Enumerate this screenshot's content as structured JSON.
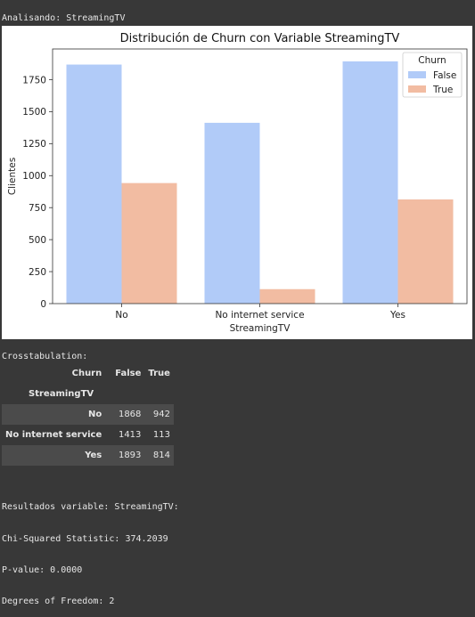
{
  "output": {
    "analyzing_line": "Analisando: StreamingTV",
    "crosstab_title": "Crosstabulation:",
    "results_lines": [
      "Resultados variable: StreamingTV:",
      "Chi-Squared Statistic: 374.2039",
      "P-value: 0.0000",
      "Degrees of Freedom: 2"
    ]
  },
  "crosstab": {
    "columns_header": "Churn",
    "columns": [
      "False",
      "True"
    ],
    "index_name": "StreamingTV",
    "rows": [
      {
        "label": "No",
        "values": [
          "1868",
          "942"
        ]
      },
      {
        "label": "No internet service",
        "values": [
          "1413",
          "113"
        ]
      },
      {
        "label": "Yes",
        "values": [
          "1893",
          "814"
        ]
      }
    ]
  },
  "chart_data": {
    "type": "bar",
    "title": "Distribución de Churn con Variable StreamingTV",
    "xlabel": "StreamingTV",
    "ylabel": "Clientes",
    "categories": [
      "No",
      "No internet service",
      "Yes"
    ],
    "series": [
      {
        "name": "False",
        "values": [
          1868,
          1413,
          1893
        ],
        "color": "#b1cbf8"
      },
      {
        "name": "True",
        "values": [
          942,
          113,
          814
        ],
        "color": "#f2bca2"
      }
    ],
    "ylim": [
      0,
      1990
    ],
    "yticks": [
      0,
      250,
      500,
      750,
      1000,
      1250,
      1500,
      1750
    ],
    "legend": {
      "title": "Churn",
      "placement": "top-right"
    },
    "grid": false
  }
}
